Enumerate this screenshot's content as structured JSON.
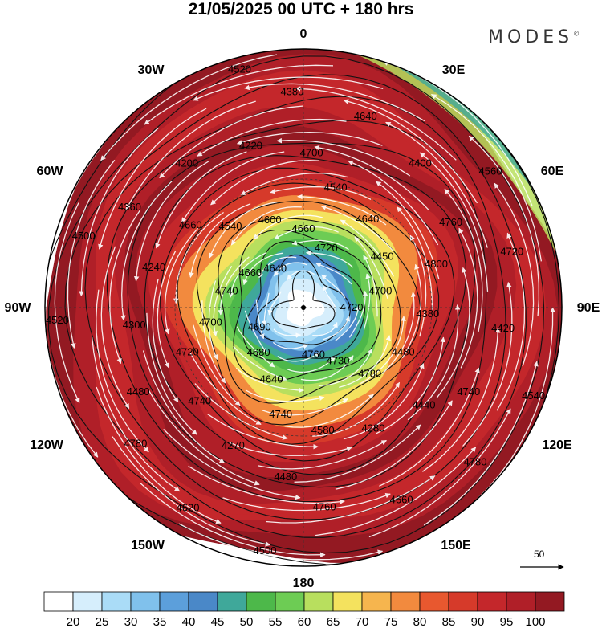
{
  "header": {
    "title": "21/05/2025  00 UTC  + 180 hrs",
    "brand": "MODES",
    "brand_mark": "©"
  },
  "longitude_labels": {
    "lon_0": "0",
    "lon_30e": "30E",
    "lon_60e": "60E",
    "lon_90e": "90E",
    "lon_120e": "120E",
    "lon_150e": "150E",
    "lon_180": "180",
    "lon_150w": "150W",
    "lon_120w": "120W",
    "lon_90w": "90W",
    "lon_60w": "60W",
    "lon_30w": "30W"
  },
  "contour_labels": [
    "4720",
    "4730",
    "4640",
    "4700",
    "4540",
    "4540",
    "4800",
    "4440",
    "4480",
    "4480",
    "4360",
    "4380",
    "4560",
    "4540",
    "4760",
    "4680",
    "4740",
    "4600",
    "4640",
    "4380",
    "4280",
    "4270",
    "4300",
    "4200",
    "4640",
    "4720",
    "4780",
    "4500",
    "4690",
    "4660",
    "4660",
    "4450",
    "4480",
    "4580",
    "4740",
    "4240",
    "4220",
    "4400",
    "4420",
    "4660",
    "4620",
    "4520",
    "4640",
    "4720",
    "4700",
    "4780",
    "4740",
    "4720",
    "4660",
    "4700",
    "4760",
    "4740",
    "4760",
    "4780",
    "4500",
    "4520"
  ],
  "vector_reference": {
    "label": "50"
  },
  "colorbar": {
    "colors": [
      "#ffffff",
      "#d6eefc",
      "#aadcf7",
      "#80c1ec",
      "#5c9fdb",
      "#4a88c8",
      "#3fa89a",
      "#4db84a",
      "#6dcc54",
      "#b8df5e",
      "#f4e25e",
      "#f6b54e",
      "#f28a3e",
      "#e8582f",
      "#d63a2a",
      "#c4272b",
      "#b01f28",
      "#931922"
    ],
    "tick_labels": [
      "20",
      "25",
      "30",
      "35",
      "40",
      "45",
      "50",
      "55",
      "60",
      "65",
      "70",
      "75",
      "80",
      "85",
      "90",
      "95",
      "100"
    ]
  }
}
